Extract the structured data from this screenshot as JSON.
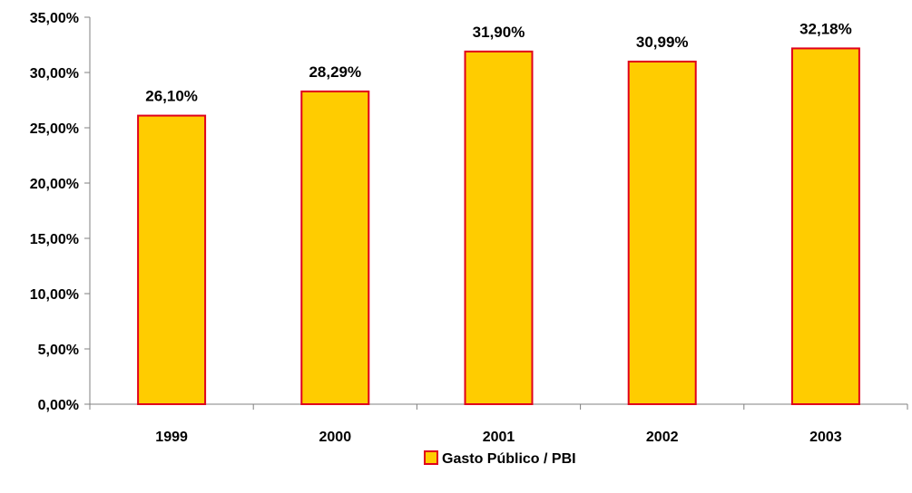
{
  "chart_data": {
    "type": "bar",
    "categories": [
      "1999",
      "2000",
      "2001",
      "2002",
      "2003"
    ],
    "series": [
      {
        "name": "Gasto Público / PBI",
        "values": [
          26.1,
          28.29,
          31.9,
          30.99,
          32.18
        ]
      }
    ],
    "data_labels": [
      "26,10%",
      "28,29%",
      "31,90%",
      "30,99%",
      "32,18%"
    ],
    "y_tick_labels": [
      "0,00%",
      "5,00%",
      "10,00%",
      "15,00%",
      "20,00%",
      "25,00%",
      "30,00%",
      "35,00%"
    ],
    "y_ticks": [
      0,
      5,
      10,
      15,
      20,
      25,
      30,
      35
    ],
    "ylim": [
      0,
      35
    ],
    "title": "",
    "xlabel": "",
    "ylabel": "",
    "grid": false,
    "legend": {
      "position": "bottom-center",
      "label": "Gasto Público / PBI"
    },
    "colors": {
      "bar_fill": "#FFCC00",
      "bar_stroke": "#E0001B",
      "axis": "#808080"
    }
  }
}
